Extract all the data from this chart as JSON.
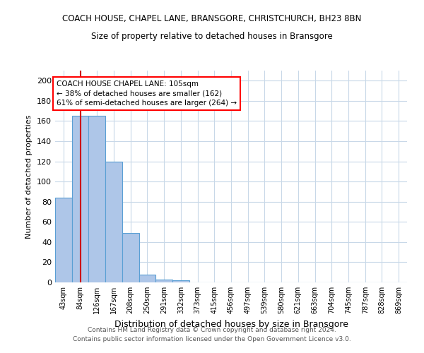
{
  "title": "COACH HOUSE, CHAPEL LANE, BRANSGORE, CHRISTCHURCH, BH23 8BN",
  "subtitle": "Size of property relative to detached houses in Bransgore",
  "xlabel": "Distribution of detached houses by size in Bransgore",
  "ylabel": "Number of detached properties",
  "footer_line1": "Contains HM Land Registry data © Crown copyright and database right 2024.",
  "footer_line2": "Contains public sector information licensed under the Open Government Licence v3.0.",
  "categories": [
    "43sqm",
    "84sqm",
    "126sqm",
    "167sqm",
    "208sqm",
    "250sqm",
    "291sqm",
    "332sqm",
    "373sqm",
    "415sqm",
    "456sqm",
    "497sqm",
    "539sqm",
    "580sqm",
    "621sqm",
    "663sqm",
    "704sqm",
    "745sqm",
    "787sqm",
    "828sqm",
    "869sqm"
  ],
  "values": [
    84,
    165,
    165,
    120,
    49,
    8,
    3,
    2,
    0,
    0,
    0,
    0,
    0,
    0,
    0,
    0,
    0,
    0,
    0,
    0,
    0
  ],
  "bar_color": "#aec6e8",
  "bar_edge_color": "#5a9fd4",
  "ylim": [
    0,
    210
  ],
  "yticks": [
    0,
    20,
    40,
    60,
    80,
    100,
    120,
    140,
    160,
    180,
    200
  ],
  "property_line_x": 1.5,
  "annotation_line1": "COACH HOUSE CHAPEL LANE: 105sqm",
  "annotation_line2": "← 38% of detached houses are smaller (162)",
  "annotation_line3": "61% of semi-detached houses are larger (264) →",
  "red_line_color": "#cc0000",
  "background_color": "#ffffff",
  "grid_color": "#c8d8e8",
  "title_fontsize": 8.5,
  "subtitle_fontsize": 8.5,
  "ylabel_fontsize": 8,
  "xlabel_fontsize": 9,
  "tick_fontsize": 7,
  "annotation_fontsize": 7.5,
  "footer_fontsize": 6.5,
  "footer_color": "#555555"
}
